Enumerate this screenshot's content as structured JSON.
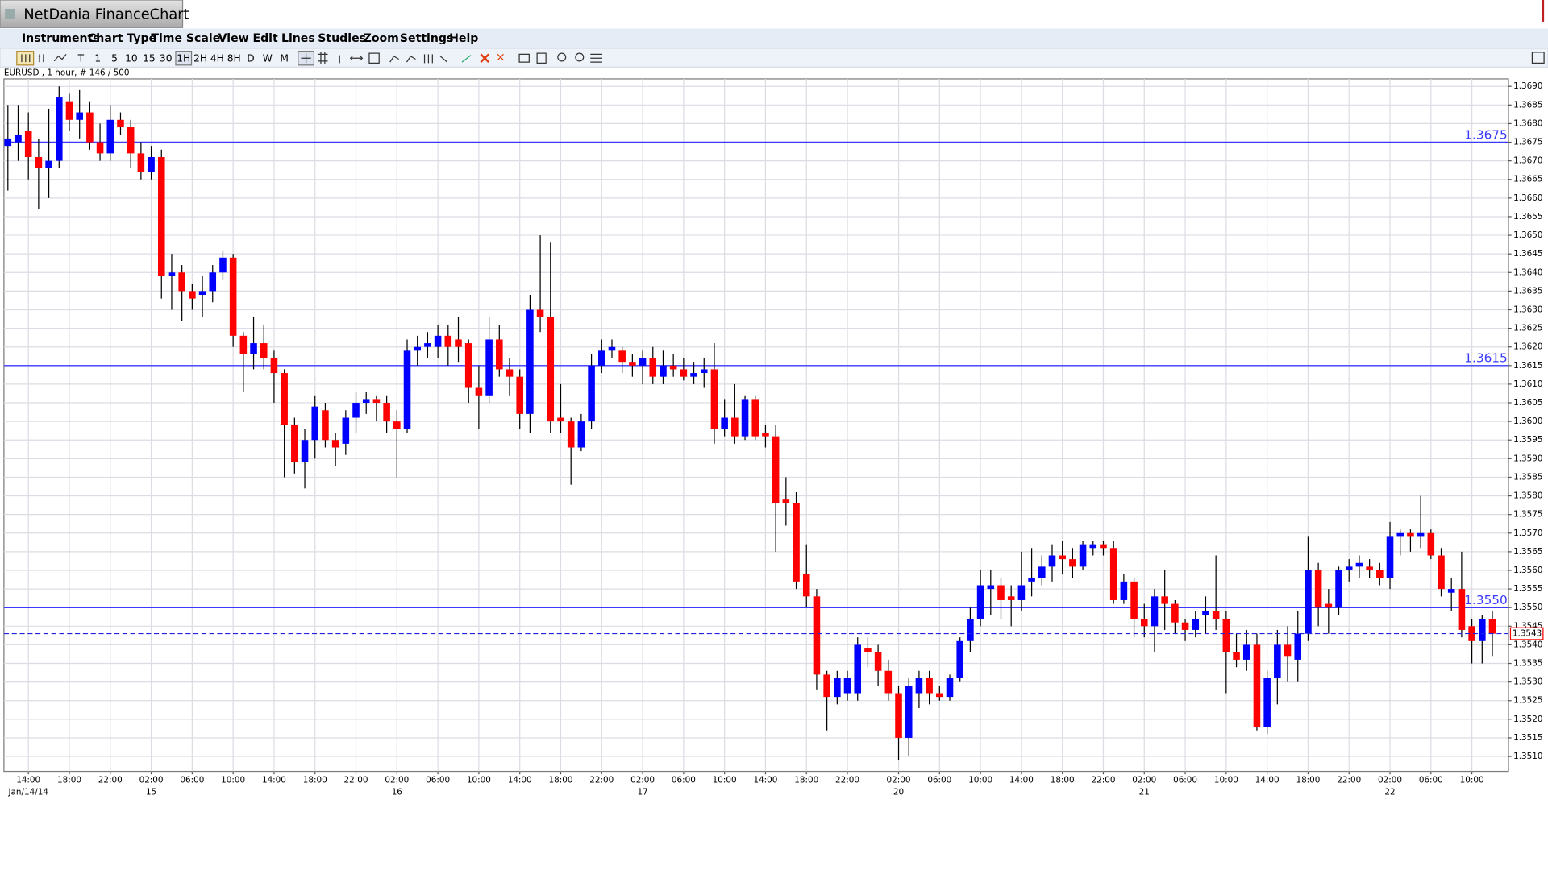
{
  "window_title": "NetDania FinanceChart",
  "menu": [
    "Instruments",
    "Chart Type",
    "Time Scale",
    "View",
    "Edit",
    "Lines",
    "Studies",
    "Zoom",
    "Settings",
    "Help"
  ],
  "toolbar": [
    "T",
    "1",
    "5",
    "10",
    "15",
    "30",
    "1H",
    "2H",
    "4H",
    "8H",
    "D",
    "W",
    "M"
  ],
  "info": "EURUSD , 1 hour, # 146 / 500",
  "chart_data": {
    "type": "candlestick",
    "up_color": "#0000ff",
    "down_color": "#ff0000",
    "level_color": "#3a3aff",
    "last_price_color": "#ff0000",
    "grid": true,
    "ylim": [
      1.3506,
      1.3692
    ],
    "yticks": [
      {
        "value": 1.369,
        "label": "1.3690"
      },
      1.3685,
      {
        "value": 1.368,
        "label": "1.3680"
      },
      1.3675,
      {
        "value": 1.367,
        "label": "1.3670"
      },
      1.3665,
      {
        "value": 1.366,
        "label": "1.3660"
      },
      1.3655,
      {
        "value": 1.365,
        "label": "1.3650"
      },
      1.3645,
      {
        "value": 1.364,
        "label": "1.3640"
      },
      1.3635,
      {
        "value": 1.363,
        "label": "1.3630"
      },
      1.3625,
      {
        "value": 1.362,
        "label": "1.3620"
      },
      1.3615,
      {
        "value": 1.361,
        "label": "1.3610"
      },
      1.3605,
      {
        "value": 1.36,
        "label": "1.3600"
      },
      1.3595,
      {
        "value": 1.359,
        "label": "1.3590"
      },
      1.3585,
      {
        "value": 1.358,
        "label": "1.3580"
      },
      1.3575,
      {
        "value": 1.357,
        "label": "1.3570"
      },
      1.3565,
      {
        "value": 1.356,
        "label": "1.3560"
      },
      1.3555,
      {
        "value": 1.355,
        "label": "1.3550"
      },
      1.3545,
      {
        "value": 1.354,
        "label": "1.3540"
      },
      1.3535,
      {
        "value": 1.353,
        "label": "1.3530"
      },
      1.3525,
      {
        "value": 1.352,
        "label": "1.3520"
      },
      1.3515,
      {
        "value": 1.351,
        "label": "1.3510"
      }
    ],
    "levels": [
      1.3675,
      1.3615,
      {
        "value": 1.355,
        "label": "1.3550"
      }
    ],
    "last_price": 1.3543,
    "categories": [
      null,
      null,
      "14:00",
      null,
      null,
      null,
      "18:00",
      null,
      null,
      null,
      "22:00",
      null,
      null,
      null,
      "02:00",
      null,
      null,
      null,
      "06:00",
      null,
      null,
      null,
      "10:00",
      null,
      null,
      null,
      "14:00",
      null,
      null,
      null,
      "18:00",
      null,
      null,
      null,
      "22:00",
      null,
      null,
      null,
      "02:00",
      null,
      null,
      null,
      "06:00",
      null,
      null,
      null,
      "10:00",
      null,
      null,
      null,
      "14:00",
      null,
      null,
      null,
      "18:00",
      null,
      null,
      null,
      "22:00",
      null,
      null,
      null,
      "02:00",
      null,
      null,
      null,
      "06:00",
      null,
      null,
      null,
      "10:00",
      null,
      null,
      null,
      "14:00",
      null,
      null,
      null,
      "18:00",
      null,
      null,
      null,
      "22:00",
      null,
      null,
      null,
      null,
      "02:00",
      null,
      null,
      null,
      "06:00",
      null,
      null,
      null,
      "10:00",
      null,
      null,
      null,
      "14:00",
      null,
      null,
      null,
      "18:00",
      null,
      null,
      null,
      "22:00",
      null,
      null,
      null,
      "02:00",
      null,
      null,
      null,
      "06:00",
      null,
      null,
      null,
      "10:00",
      null,
      null,
      null,
      "14:00",
      null,
      null,
      null,
      "18:00",
      null,
      null,
      null,
      "22:00",
      null,
      null,
      null,
      "02:00",
      null,
      null,
      null,
      "06:00",
      null,
      null,
      null,
      "10:00",
      null,
      null
    ],
    "day_labels": [
      null,
      null,
      "Jan/14/14",
      null,
      null,
      null,
      null,
      null,
      null,
      null,
      null,
      null,
      null,
      null,
      "15",
      null,
      null,
      null,
      null,
      null,
      null,
      null,
      null,
      null,
      null,
      null,
      null,
      null,
      null,
      null,
      null,
      null,
      null,
      null,
      null,
      null,
      null,
      null,
      "16",
      null,
      null,
      null,
      null,
      null,
      null,
      null,
      null,
      null,
      null,
      null,
      null,
      null,
      null,
      null,
      null,
      null,
      null,
      null,
      null,
      null,
      null,
      null,
      "17",
      null,
      null,
      null,
      null,
      null,
      null,
      null,
      null,
      null,
      null,
      null,
      null,
      null,
      null,
      null,
      null,
      null,
      null,
      null,
      null,
      null,
      null,
      null,
      null,
      "20",
      null,
      null,
      null,
      null,
      null,
      null,
      null,
      null,
      null,
      null,
      null,
      null,
      null,
      null,
      null,
      null,
      null,
      null,
      null,
      null,
      null,
      null,
      null,
      "21",
      null,
      null,
      null,
      null,
      null,
      null,
      null,
      null,
      null,
      null,
      null,
      null,
      null,
      null,
      null,
      null,
      null,
      null,
      null,
      null,
      null,
      null,
      null,
      "22",
      null,
      null,
      null,
      null,
      null,
      null,
      null,
      null,
      null,
      null
    ],
    "open": [
      1.3674,
      1.3675,
      1.3678,
      1.3671,
      1.3668,
      1.367,
      1.3686,
      1.3681,
      1.3683,
      1.3675,
      1.3672,
      1.3681,
      1.3679,
      1.3672,
      1.3667,
      1.3671,
      1.3639,
      1.364,
      1.3635,
      1.3634,
      1.3635,
      1.364,
      1.3644,
      1.3623,
      1.3618,
      1.3621,
      1.3617,
      1.3613,
      1.3599,
      1.3589,
      1.3595,
      1.3603,
      1.3595,
      1.3594,
      1.3601,
      1.3605,
      1.3606,
      1.3605,
      1.36,
      1.3598,
      1.3619,
      1.362,
      1.362,
      1.3623,
      1.3622,
      1.3621,
      1.3609,
      1.3607,
      1.3622,
      1.3614,
      1.3612,
      1.3602,
      1.363,
      1.3628,
      1.3601,
      1.36,
      1.3593,
      1.36,
      1.3615,
      1.3619,
      1.3619,
      1.3616,
      1.3615,
      1.3617,
      1.3612,
      1.3615,
      1.3614,
      1.3612,
      1.3613,
      1.3614,
      1.3598,
      1.3601,
      1.3596,
      1.3606,
      1.3597,
      1.3596,
      1.3579,
      1.3578,
      1.3559,
      1.3553,
      1.3532,
      1.3526,
      1.3527,
      1.3527,
      1.3539,
      1.3538,
      1.3533,
      1.3527,
      1.3515,
      1.3527,
      1.3531,
      1.3527,
      1.3526,
      1.3531,
      1.3541,
      1.3547,
      1.3555,
      1.3556,
      1.3553,
      1.3552,
      1.3557,
      1.3558,
      1.3561,
      1.3564,
      1.3563,
      1.3561,
      1.3566,
      1.3567,
      1.3566,
      1.3552,
      1.3557,
      1.3547,
      1.3545,
      1.3553,
      1.3551,
      1.3546,
      1.3544,
      1.3548,
      1.3549,
      1.3547,
      1.3538,
      1.3536,
      1.354,
      1.3518,
      1.3531,
      1.354,
      1.3536,
      1.3543,
      1.356,
      1.3551,
      1.355,
      1.356,
      1.3561,
      1.3561,
      1.356,
      1.3558,
      1.3569,
      1.357,
      1.3569,
      1.357,
      1.3564,
      1.3554,
      1.3555,
      1.3545,
      1.3541,
      1.3547
    ],
    "high": [
      1.3685,
      1.3685,
      1.3683,
      1.3676,
      1.3684,
      1.369,
      1.3688,
      1.3689,
      1.3686,
      1.368,
      1.3685,
      1.3683,
      1.3681,
      1.3675,
      1.3674,
      1.3673,
      1.3645,
      1.3642,
      1.3637,
      1.3639,
      1.3642,
      1.3646,
      1.3645,
      1.3624,
      1.3628,
      1.3626,
      1.3619,
      1.3614,
      1.3601,
      1.3598,
      1.3607,
      1.3605,
      1.3597,
      1.3603,
      1.3608,
      1.3608,
      1.3607,
      1.3607,
      1.3603,
      1.3622,
      1.3623,
      1.3624,
      1.3626,
      1.3626,
      1.3628,
      1.3622,
      1.3615,
      1.3628,
      1.3626,
      1.3617,
      1.3614,
      1.3634,
      1.365,
      1.3648,
      1.361,
      1.3601,
      1.3602,
      1.3618,
      1.3622,
      1.3622,
      1.362,
      1.3618,
      1.3619,
      1.362,
      1.3619,
      1.3618,
      1.3617,
      1.3616,
      1.3617,
      1.3621,
      1.3606,
      1.361,
      1.3607,
      1.3607,
      1.3599,
      1.3599,
      1.3585,
      1.3581,
      1.3567,
      1.3555,
      1.3533,
      1.3533,
      1.3533,
      1.3542,
      1.3542,
      1.354,
      1.3536,
      1.3529,
      1.3531,
      1.3533,
      1.3533,
      1.3529,
      1.3532,
      1.3542,
      1.355,
      1.356,
      1.356,
      1.3558,
      1.3556,
      1.3565,
      1.3566,
      1.3564,
      1.3567,
      1.3568,
      1.3566,
      1.3568,
      1.3568,
      1.3568,
      1.3568,
      1.3559,
      1.3558,
      1.3551,
      1.3555,
      1.356,
      1.3552,
      1.3547,
      1.3549,
      1.3553,
      1.3564,
      1.3549,
      1.3543,
      1.3544,
      1.3543,
      1.3533,
      1.3544,
      1.3545,
      1.3549,
      1.3569,
      1.3562,
      1.3555,
      1.3561,
      1.3563,
      1.3564,
      1.3563,
      1.3562,
      1.3573,
      1.3571,
      1.3571,
      1.358,
      1.3571,
      1.3566,
      1.3558,
      1.3565,
      1.3547,
      1.3548,
      1.3549
    ],
    "low": [
      1.3662,
      1.367,
      1.3665,
      1.3657,
      1.366,
      1.3668,
      1.3678,
      1.3676,
      1.3673,
      1.367,
      1.367,
      1.3677,
      1.3668,
      1.3665,
      1.3665,
      1.3633,
      1.363,
      1.3627,
      1.363,
      1.3628,
      1.3632,
      1.3638,
      1.362,
      1.3608,
      1.3614,
      1.3614,
      1.3605,
      1.3585,
      1.3586,
      1.3582,
      1.359,
      1.3593,
      1.3588,
      1.3591,
      1.3597,
      1.3602,
      1.36,
      1.3597,
      1.3585,
      1.3597,
      1.3615,
      1.3617,
      1.3617,
      1.3615,
      1.3616,
      1.3605,
      1.3598,
      1.3605,
      1.3612,
      1.3607,
      1.3598,
      1.3597,
      1.3624,
      1.3597,
      1.3597,
      1.3583,
      1.3592,
      1.3598,
      1.3613,
      1.3617,
      1.3613,
      1.3612,
      1.361,
      1.361,
      1.361,
      1.3612,
      1.3611,
      1.361,
      1.3609,
      1.3594,
      1.3596,
      1.3594,
      1.3595,
      1.3595,
      1.3593,
      1.3565,
      1.3572,
      1.3555,
      1.355,
      1.3528,
      1.3517,
      1.3524,
      1.3525,
      1.3525,
      1.3534,
      1.3529,
      1.3525,
      1.3509,
      1.351,
      1.3523,
      1.3524,
      1.3525,
      1.3525,
      1.353,
      1.3538,
      1.3545,
      1.3548,
      1.3547,
      1.3545,
      1.3549,
      1.3553,
      1.3556,
      1.3557,
      1.3559,
      1.3558,
      1.356,
      1.3564,
      1.3564,
      1.3551,
      1.3551,
      1.3542,
      1.3542,
      1.3538,
      1.3544,
      1.3543,
      1.3541,
      1.3542,
      1.3543,
      1.3544,
      1.3527,
      1.3534,
      1.3533,
      1.3517,
      1.3516,
      1.3524,
      1.353,
      1.353,
      1.3541,
      1.3545,
      1.3543,
      1.3548,
      1.3557,
      1.3558,
      1.3558,
      1.3556,
      1.3555,
      1.3564,
      1.3565,
      1.3566,
      1.3563,
      1.3553,
      1.3549,
      1.3542,
      1.3535,
      1.3535,
      1.3537
    ],
    "close": [
      1.3676,
      1.3677,
      1.3671,
      1.3668,
      1.367,
      1.3687,
      1.3681,
      1.3683,
      1.3675,
      1.3672,
      1.3681,
      1.3679,
      1.3672,
      1.3667,
      1.3671,
      1.3639,
      1.364,
      1.3635,
      1.3633,
      1.3635,
      1.364,
      1.3644,
      1.3623,
      1.3618,
      1.3621,
      1.3617,
      1.3613,
      1.3599,
      1.3589,
      1.3595,
      1.3604,
      1.3595,
      1.3593,
      1.3601,
      1.3605,
      1.3606,
      1.3605,
      1.36,
      1.3598,
      1.3619,
      1.362,
      1.3621,
      1.3623,
      1.362,
      1.362,
      1.3609,
      1.3607,
      1.3622,
      1.3614,
      1.3612,
      1.3602,
      1.363,
      1.3628,
      1.36,
      1.36,
      1.3593,
      1.36,
      1.3615,
      1.3619,
      1.362,
      1.3616,
      1.3615,
      1.3617,
      1.3612,
      1.3615,
      1.3614,
      1.3612,
      1.3613,
      1.3614,
      1.3598,
      1.3601,
      1.3596,
      1.3606,
      1.3596,
      1.3596,
      1.3578,
      1.3578,
      1.3557,
      1.3553,
      1.3532,
      1.3526,
      1.3531,
      1.3531,
      1.354,
      1.3538,
      1.3533,
      1.3527,
      1.3515,
      1.3529,
      1.3531,
      1.3527,
      1.3526,
      1.3531,
      1.3541,
      1.3547,
      1.3556,
      1.3556,
      1.3552,
      1.3552,
      1.3556,
      1.3558,
      1.3561,
      1.3564,
      1.3563,
      1.3561,
      1.3567,
      1.3567,
      1.3566,
      1.3552,
      1.3557,
      1.3547,
      1.3545,
      1.3553,
      1.3551,
      1.3546,
      1.3544,
      1.3547,
      1.3549,
      1.3547,
      1.3538,
      1.3536,
      1.354,
      1.3518,
      1.3531,
      1.354,
      1.3537,
      1.3543,
      1.356,
      1.355,
      1.355,
      1.356,
      1.3561,
      1.3562,
      1.356,
      1.3558,
      1.3569,
      1.357,
      1.3569,
      1.357,
      1.3564,
      1.3555,
      1.3555,
      1.3544,
      1.3541,
      1.3547,
      1.3543
    ]
  }
}
